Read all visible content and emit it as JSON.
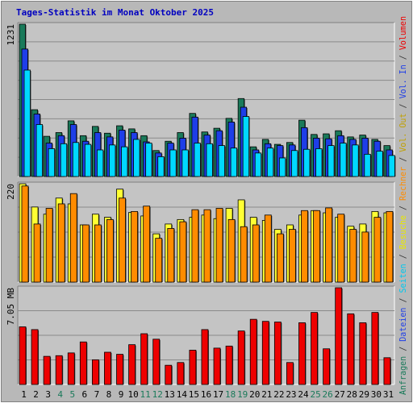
{
  "chart_data": {
    "type": "bar",
    "title": "Tages-Statistik im Monat Oktober 2025",
    "categories": [
      "1",
      "2",
      "3",
      "4",
      "5",
      "6",
      "7",
      "8",
      "9",
      "10",
      "11",
      "12",
      "13",
      "14",
      "15",
      "16",
      "17",
      "18",
      "19",
      "20",
      "21",
      "22",
      "23",
      "24",
      "25",
      "26",
      "27",
      "28",
      "29",
      "30",
      "31"
    ],
    "weekend_days": [
      "4",
      "5",
      "11",
      "12",
      "18",
      "19",
      "25",
      "26"
    ],
    "panels": [
      {
        "name": "top",
        "max_label": "1231",
        "ylim": [
          0,
          1231
        ],
        "series": [
          {
            "name": "Anfragen",
            "color": "#1a7a5a",
            "values": [
              1231,
              540,
              325,
              355,
              450,
              330,
              405,
              350,
              410,
              385,
              330,
              210,
              285,
              355,
              510,
              360,
              390,
              470,
              630,
              240,
              300,
              260,
              275,
              455,
              340,
              345,
              370,
              320,
              335,
              300,
              250
            ]
          },
          {
            "name": "Dateien",
            "color": "#1e3ee8",
            "values": [
              1030,
              505,
              270,
              330,
              420,
              285,
              355,
              320,
              375,
              355,
              280,
              190,
              270,
              310,
              480,
              335,
              370,
              440,
              560,
              215,
              265,
              250,
              255,
              395,
              310,
              305,
              330,
              300,
              310,
              285,
              215
            ]
          },
          {
            "name": "Seiten",
            "color": "#00d8ff",
            "values": [
              860,
              420,
              225,
              265,
              275,
              260,
              215,
              255,
              240,
              300,
              270,
              160,
              215,
              215,
              270,
              265,
              250,
              230,
              485,
              190,
              230,
              150,
              210,
              220,
              225,
              250,
              270,
              255,
              180,
              205,
              170
            ]
          }
        ]
      },
      {
        "name": "middle",
        "max_label": "220",
        "ylim": [
          0,
          220
        ],
        "series": [
          {
            "name": "Besuche",
            "color": "#ffff33",
            "values": [
              220,
              168,
              152,
              188,
              175,
              128,
              152,
              145,
              208,
              156,
              148,
              108,
              130,
              140,
              145,
              150,
              142,
              165,
              184,
              145,
              138,
              118,
              128,
              150,
              160,
              155,
              145,
              125,
              130,
              158,
              155
            ]
          },
          {
            "name": "Rechner",
            "color": "#ff8c00",
            "values": [
              215,
              130,
              165,
              175,
              198,
              128,
              128,
              140,
              188,
              158,
              170,
              98,
              120,
              135,
              162,
              162,
              165,
              140,
              124,
              128,
              150,
              108,
              118,
              160,
              160,
              166,
              152,
              118,
              112,
              145,
              158
            ]
          }
        ]
      },
      {
        "name": "bottom",
        "max_label": "7.05 MB",
        "ylim": [
          0,
          7.05
        ],
        "series": [
          {
            "name": "Volumen",
            "color": "#ee0000",
            "values": [
              4.2,
              4.0,
              2.05,
              2.1,
              2.3,
              3.1,
              1.8,
              2.35,
              2.2,
              2.9,
              3.7,
              3.3,
              1.4,
              1.6,
              2.5,
              4.0,
              2.65,
              2.8,
              3.9,
              4.75,
              4.6,
              4.55,
              1.6,
              4.5,
              5.25,
              2.6,
              7.05,
              5.15,
              4.5,
              5.25,
              1.95
            ]
          }
        ]
      }
    ],
    "right_labels": [
      {
        "text": "Anfragen",
        "color": "#1a7a5a"
      },
      {
        "text": "Dateien",
        "color": "#1e3ee8"
      },
      {
        "text": "Seiten",
        "color": "#00c8ee"
      },
      {
        "text": "Besuche",
        "color": "#e8e800"
      },
      {
        "text": "Rechner",
        "color": "#ff8c00"
      },
      {
        "text": "Vol. Out",
        "color": "#c0a000"
      },
      {
        "text": "Vol. In",
        "color": "#1e3ee8"
      },
      {
        "text": "Volumen",
        "color": "#ee0000"
      }
    ],
    "separator": " / ",
    "separator_color": "#333333",
    "weekday_label_color": "#000000",
    "weekend_label_color": "#1a7a5a"
  }
}
